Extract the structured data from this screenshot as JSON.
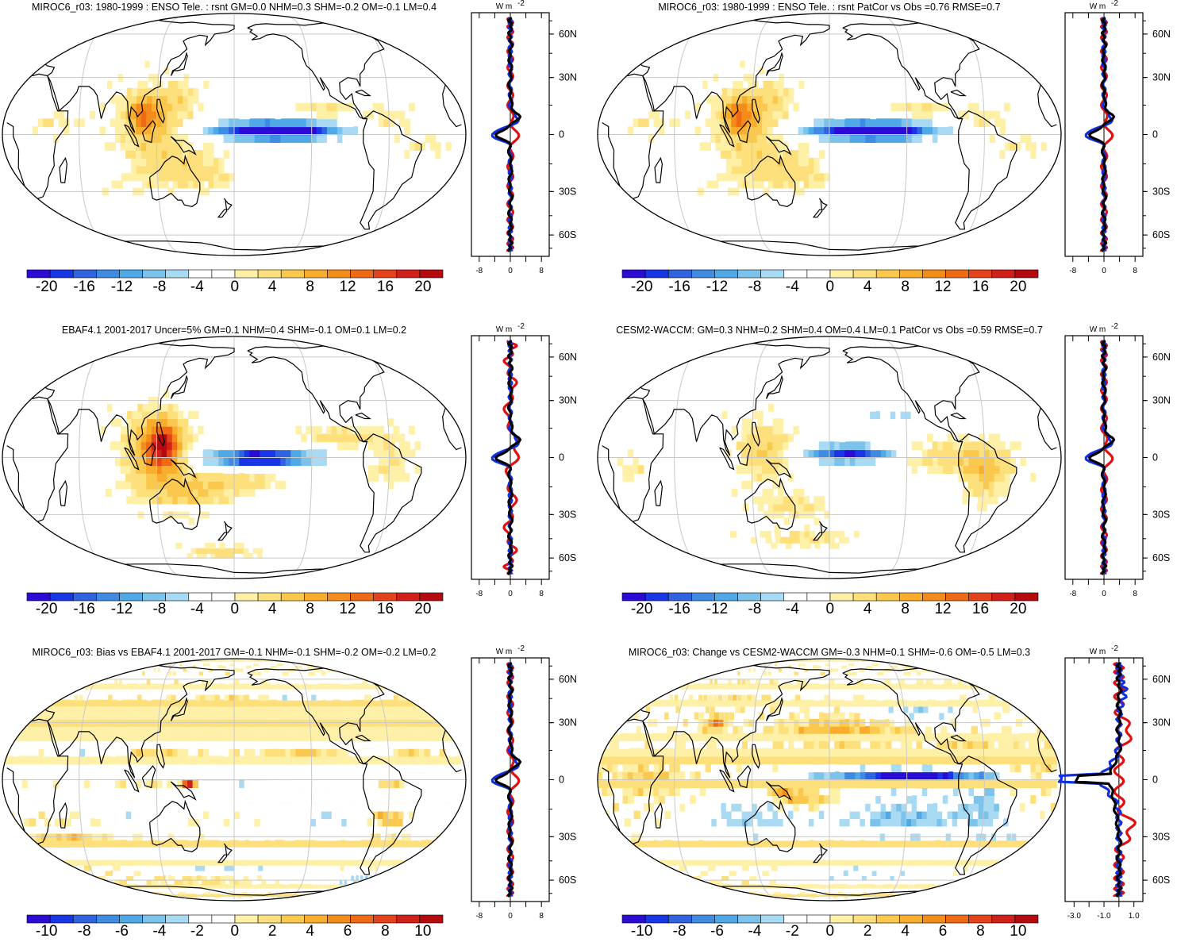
{
  "figure": {
    "panels": [
      {
        "id": "p1",
        "title": "MIROC6_r03: 1980-1999 : ENSO Tele. : rsnt GM=0.0 NHM=0.3 SHM=-0.2 OM=-0.1 LM=0.4",
        "variant": "model",
        "colorbar_labels": [
          "-20",
          "-16",
          "-12",
          "-8",
          "-4",
          "0",
          "4",
          "8",
          "12",
          "16",
          "20"
        ],
        "profile": {
          "unit_label": "W m",
          "unit_sup": "-2",
          "x_ticks": [
            "-8",
            "0",
            "8"
          ],
          "x_range": [
            -10,
            10
          ]
        }
      },
      {
        "id": "p2",
        "title": "MIROC6_r03: 1980-1999 : ENSO Tele. : rsnt PatCor vs Obs =0.76 RMSE=0.7",
        "variant": "model",
        "colorbar_labels": [
          "-20",
          "-16",
          "-12",
          "-8",
          "-4",
          "0",
          "4",
          "8",
          "12",
          "16",
          "20"
        ],
        "profile": {
          "unit_label": "W m",
          "unit_sup": "-2",
          "x_ticks": [
            "-8",
            "0",
            "8"
          ],
          "x_range": [
            -10,
            10
          ]
        }
      },
      {
        "id": "p3",
        "title": "EBAF4.1 2001-2017 Uncer=5% GM=0.1 NHM=0.4 SHM=-0.1 OM=0.1 LM=0.2",
        "variant": "obs",
        "colorbar_labels": [
          "-20",
          "-16",
          "-12",
          "-8",
          "-4",
          "0",
          "4",
          "8",
          "12",
          "16",
          "20"
        ],
        "profile": {
          "unit_label": "W m",
          "unit_sup": "-2",
          "x_ticks": [
            "-8",
            "0",
            "8"
          ],
          "x_range": [
            -10,
            10
          ]
        }
      },
      {
        "id": "p4",
        "title": "CESM2-WACCM: GM=0.3 NHM=0.2 SHM=0.4 OM=0.4 LM=0.1 PatCor vs Obs =0.59 RMSE=0.7",
        "variant": "cesm",
        "colorbar_labels": [
          "-20",
          "-16",
          "-12",
          "-8",
          "-4",
          "0",
          "4",
          "8",
          "12",
          "16",
          "20"
        ],
        "profile": {
          "unit_label": "W m",
          "unit_sup": "-2",
          "x_ticks": [
            "-8",
            "0",
            "8"
          ],
          "x_range": [
            -10,
            10
          ]
        }
      },
      {
        "id": "p5",
        "title": "MIROC6_r03: Bias vs EBAF4.1 2001-2017 GM=-0.1 NHM=-0.1 SHM=-0.2 OM=-0.2 LM=0.2",
        "variant": "bias",
        "colorbar_labels": [
          "-10",
          "-8",
          "-6",
          "-4",
          "-2",
          "0",
          "2",
          "4",
          "6",
          "8",
          "10"
        ],
        "profile": {
          "unit_label": "W m",
          "unit_sup": "-2",
          "x_ticks": [
            "-8",
            "0",
            "8"
          ],
          "x_range": [
            -10,
            10
          ]
        }
      },
      {
        "id": "p6",
        "title": "MIROC6_r03: Change vs CESM2-WACCM GM=-0.3 NHM=0.1 SHM=-0.6 OM=-0.5 LM=0.3",
        "variant": "change",
        "colorbar_labels": [
          "-10",
          "-8",
          "-6",
          "-4",
          "-2",
          "0",
          "2",
          "4",
          "6",
          "8",
          "10"
        ],
        "profile": {
          "unit_label": "W m",
          "unit_sup": "-2",
          "x_ticks": [
            "-3.0",
            "-1.0",
            "1.0"
          ],
          "x_range": [
            -3.6,
            1.6
          ]
        }
      }
    ],
    "latitude_labels": [
      "60N",
      "30N",
      "0",
      "30S",
      "60S"
    ],
    "colors": {
      "palette": [
        "#2a0cd6",
        "#1835e6",
        "#2f63e0",
        "#3f8be3",
        "#4fa9e6",
        "#7cc3ec",
        "#a9daf3",
        "#ffffff",
        "#ffffff",
        "#fff0a8",
        "#fde07c",
        "#fbc84e",
        "#f8ad2c",
        "#f48c1c",
        "#ee6a15",
        "#e3431a",
        "#d1201a",
        "#b40a10"
      ],
      "profile_model": "#000000",
      "profile_obs": "#e01010",
      "profile_ref": "#1030e0",
      "coast": "#000000",
      "grid": "#c8c8c8"
    }
  }
}
